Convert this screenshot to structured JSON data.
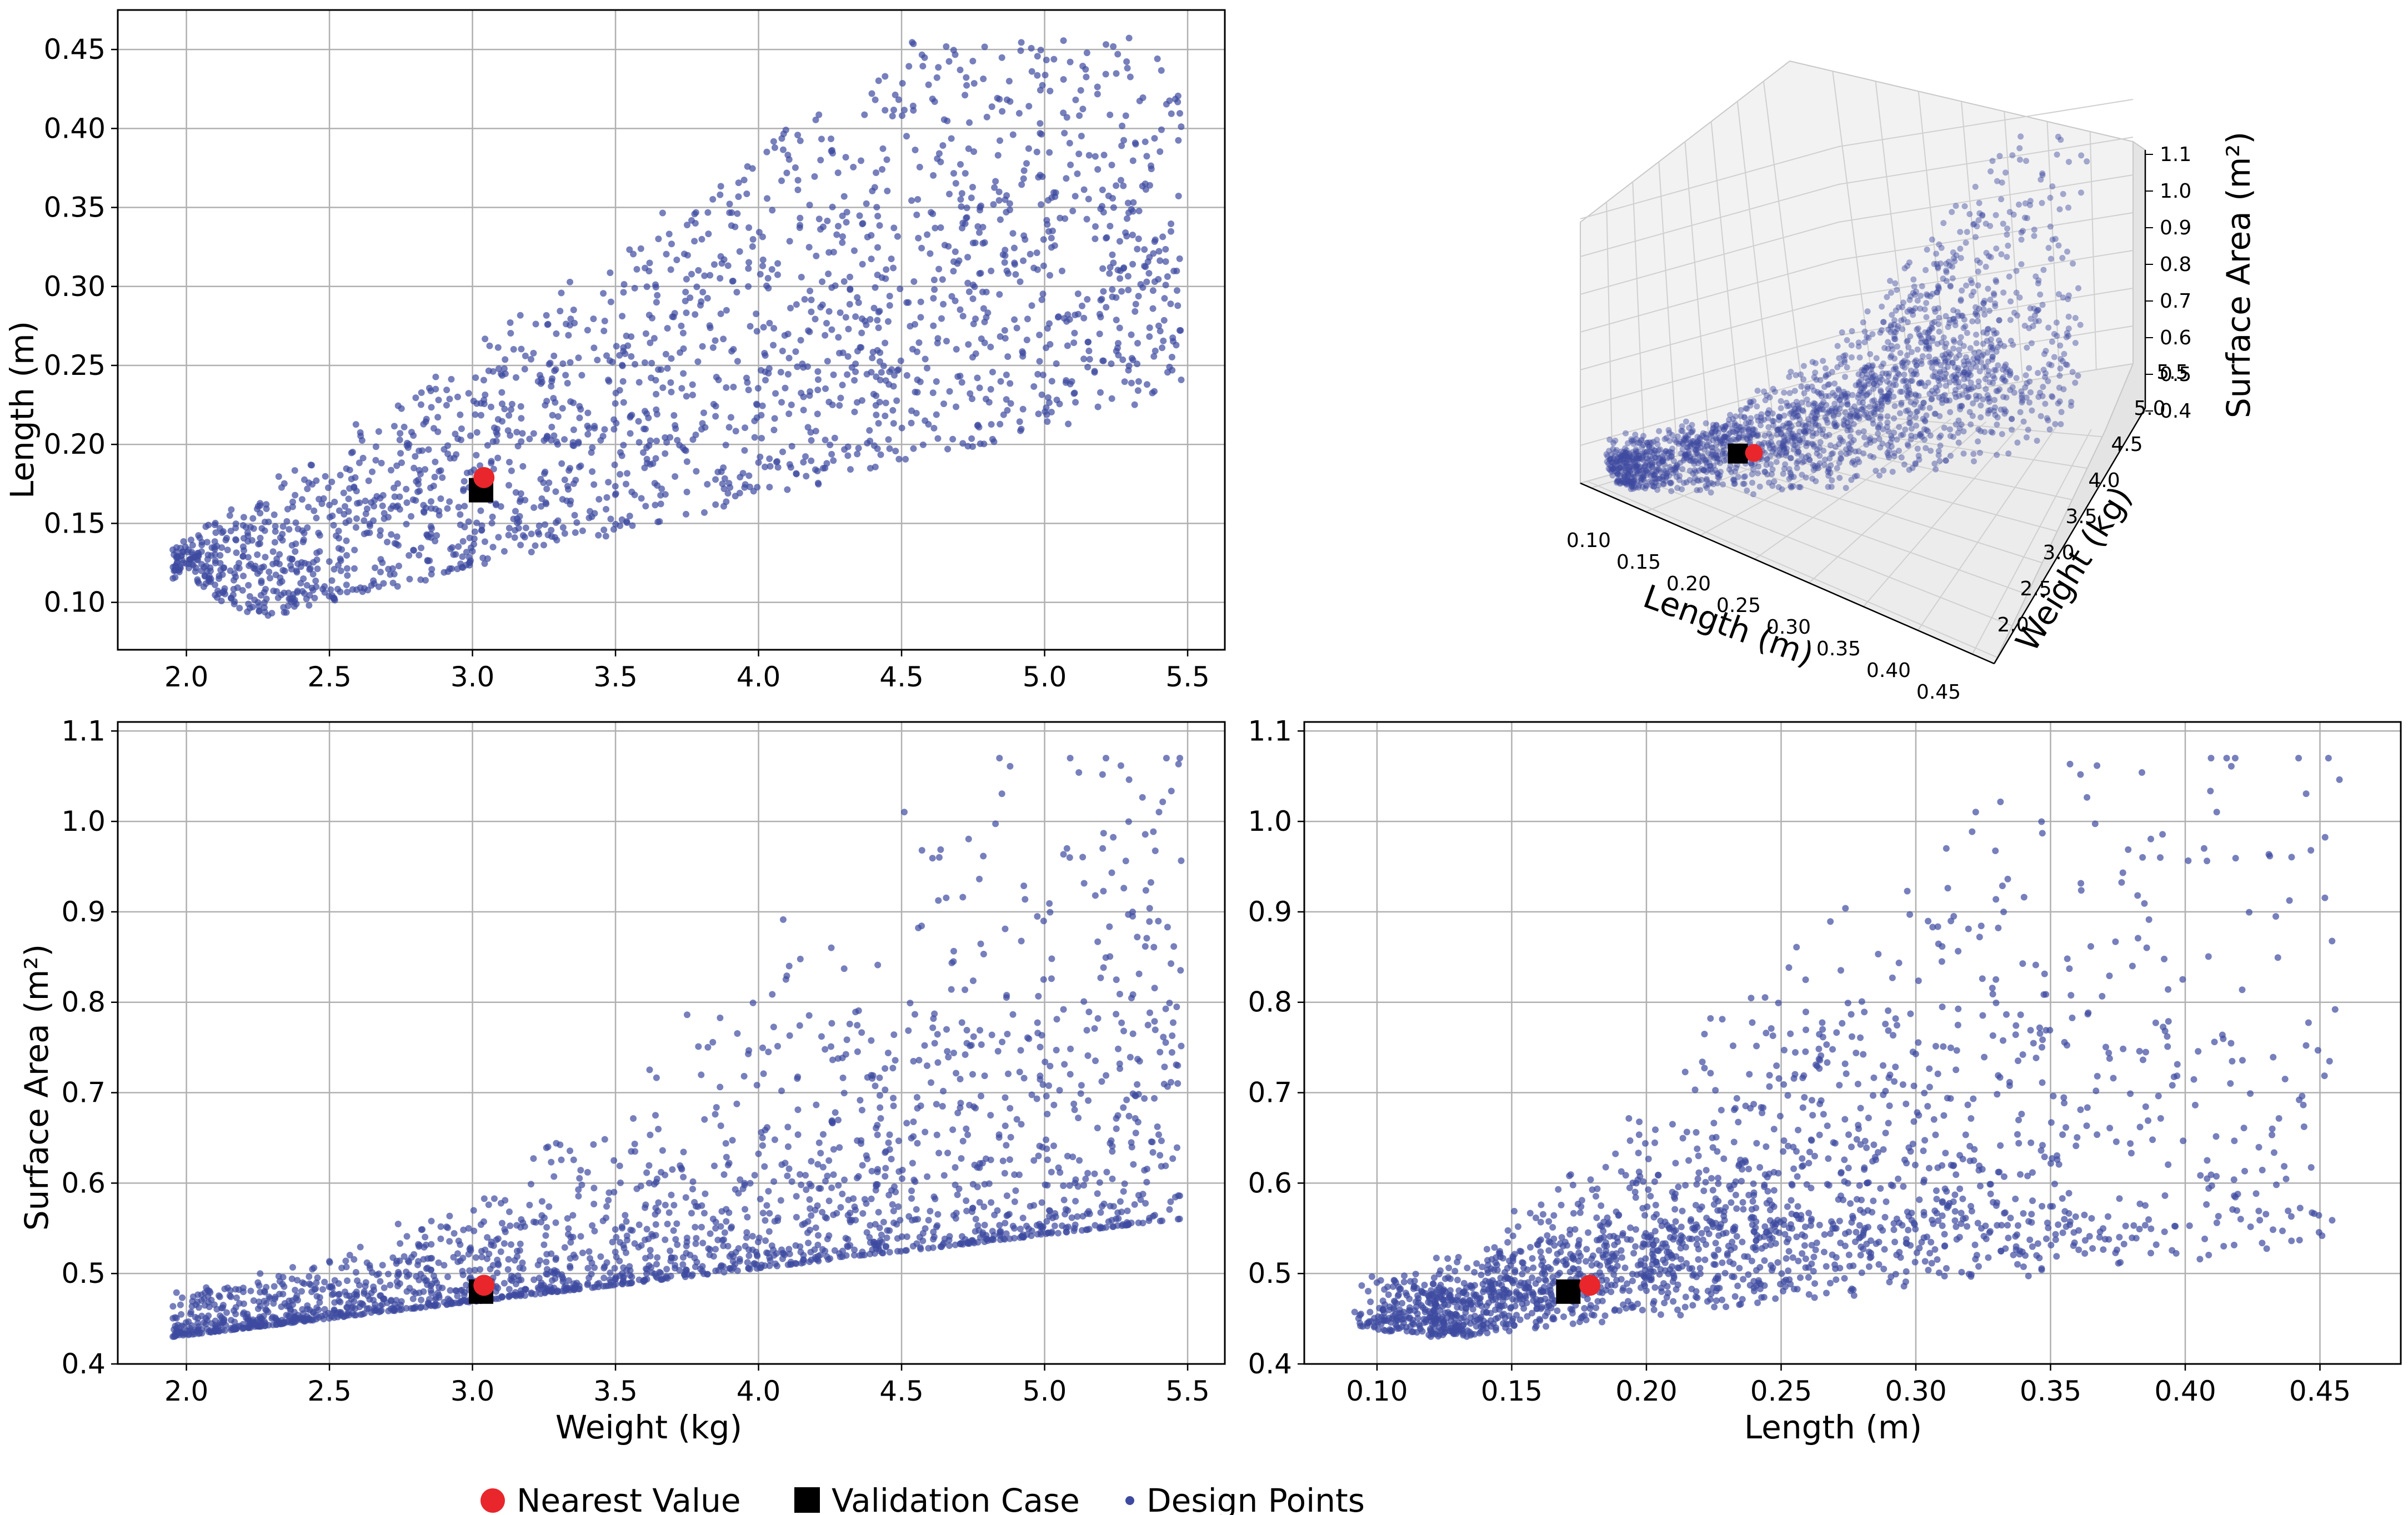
{
  "colors": {
    "design": "#3d4aa0",
    "nearest": "#e8262b",
    "validation": "#000000",
    "grid": "#b0b0b0",
    "pane": "#f2f2f2"
  },
  "legend": {
    "nearest": "Nearest Value",
    "validation": "Validation Case",
    "design": "Design Points"
  },
  "chart_data": [
    {
      "id": "length_vs_weight",
      "type": "scatter",
      "title": "",
      "xlabel": "",
      "ylabel": "Length (m)",
      "xlim": [
        1.76,
        5.63
      ],
      "ylim": [
        0.07,
        0.475
      ],
      "xticks": [
        2.0,
        2.5,
        3.0,
        3.5,
        4.0,
        4.5,
        5.0,
        5.5
      ],
      "yticks": [
        0.1,
        0.15,
        0.2,
        0.25,
        0.3,
        0.35,
        0.4,
        0.45
      ],
      "grid": true,
      "series": [
        {
          "name": "Design Points",
          "x_range": [
            1.95,
            5.48
          ],
          "y_range": [
            0.09,
            0.46
          ],
          "n_points": 2000
        },
        {
          "name": "Validation Case",
          "x": [
            3.03
          ],
          "y": [
            0.171
          ]
        },
        {
          "name": "Nearest Value",
          "x": [
            3.04
          ],
          "y": [
            0.179
          ]
        }
      ]
    },
    {
      "id": "surface_area_3d",
      "type": "scatter",
      "title": "",
      "xlabel": "Length (m)",
      "ylabel": "Weight (kg)",
      "zlabel": "Surface Area (m²)",
      "xlim": [
        0.09,
        0.47
      ],
      "ylim": [
        1.9,
        5.6
      ],
      "zlim": [
        0.4,
        1.1
      ],
      "xticks": [
        0.1,
        0.15,
        0.2,
        0.25,
        0.3,
        0.35,
        0.4,
        0.45
      ],
      "yticks": [
        2.0,
        2.5,
        3.0,
        3.5,
        4.0,
        4.5,
        5.0,
        5.5
      ],
      "zticks": [
        0.4,
        0.5,
        0.6,
        0.7,
        0.8,
        0.9,
        1.0,
        1.1
      ],
      "grid": true,
      "series": [
        {
          "name": "Design Points",
          "n_points": 2000
        },
        {
          "name": "Validation Case",
          "x": [
            0.171
          ],
          "y": [
            3.03
          ],
          "z": [
            0.48
          ]
        },
        {
          "name": "Nearest Value",
          "x": [
            0.179
          ],
          "y": [
            3.04
          ],
          "z": [
            0.487
          ]
        }
      ]
    },
    {
      "id": "surface_area_vs_weight",
      "type": "scatter",
      "title": "",
      "xlabel": "Weight (kg)",
      "ylabel": "Surface Area (m²)",
      "xlim": [
        1.76,
        5.63
      ],
      "ylim": [
        0.4,
        1.11
      ],
      "xticks": [
        2.0,
        2.5,
        3.0,
        3.5,
        4.0,
        4.5,
        5.0,
        5.5
      ],
      "yticks": [
        0.4,
        0.5,
        0.6,
        0.7,
        0.8,
        0.9,
        1.0,
        1.1
      ],
      "grid": true,
      "series": [
        {
          "name": "Design Points",
          "x_range": [
            1.95,
            5.48
          ],
          "y_range": [
            0.43,
            1.07
          ],
          "n_points": 2000
        },
        {
          "name": "Validation Case",
          "x": [
            3.03
          ],
          "y": [
            0.48
          ]
        },
        {
          "name": "Nearest Value",
          "x": [
            3.04
          ],
          "y": [
            0.487
          ]
        }
      ]
    },
    {
      "id": "surface_area_vs_length",
      "type": "scatter",
      "title": "",
      "xlabel": "Length (m)",
      "ylabel": "",
      "xlim": [
        0.073,
        0.48
      ],
      "ylim": [
        0.4,
        1.11
      ],
      "xticks": [
        0.1,
        0.15,
        0.2,
        0.25,
        0.3,
        0.35,
        0.4,
        0.45
      ],
      "yticks": [
        0.4,
        0.5,
        0.6,
        0.7,
        0.8,
        0.9,
        1.0,
        1.1
      ],
      "grid": true,
      "series": [
        {
          "name": "Design Points",
          "x_range": [
            0.09,
            0.46
          ],
          "y_range": [
            0.43,
            1.07
          ],
          "n_points": 2000
        },
        {
          "name": "Validation Case",
          "x": [
            0.171
          ],
          "y": [
            0.48
          ]
        },
        {
          "name": "Nearest Value",
          "x": [
            0.179
          ],
          "y": [
            0.487
          ]
        }
      ]
    }
  ]
}
